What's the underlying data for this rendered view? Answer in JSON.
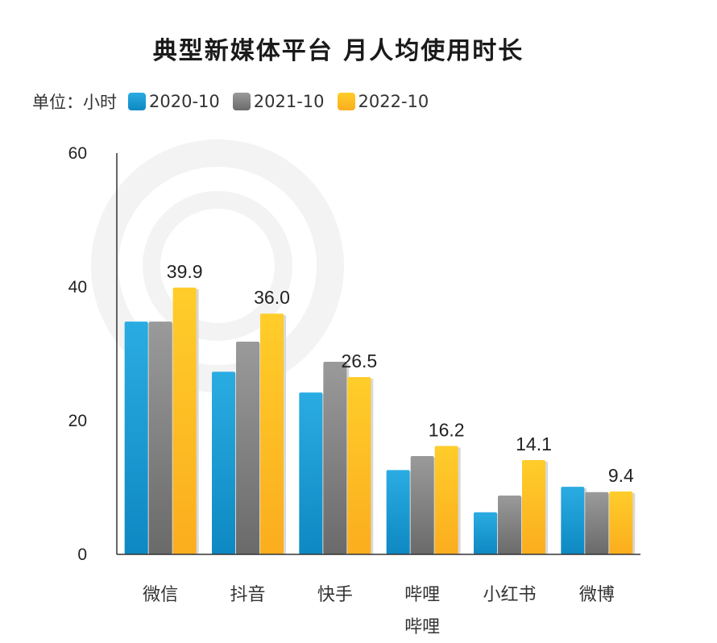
{
  "colors": {
    "series_top": [
      "#2aace2",
      "#9a9a9a",
      "#ffcd2a"
    ],
    "series_bottom": [
      "#0e88c2",
      "#6a6a6a",
      "#fbad1e"
    ]
  },
  "legend": {
    "unit_label": "单位：小时"
  },
  "chart_data": {
    "type": "bar",
    "title": "典型新媒体平台 月人均使用时长",
    "xlabel": "",
    "ylabel": "",
    "ylim": [
      0,
      60
    ],
    "yticks": [
      0,
      20,
      40,
      60
    ],
    "grid": false,
    "legend_position": "top-left",
    "categories": [
      "微信",
      "抖音",
      "快手",
      "哔哩哔哩",
      "小红书",
      "微博"
    ],
    "category_lines": [
      [
        "微信"
      ],
      [
        "抖音"
      ],
      [
        "快手"
      ],
      [
        "哔哩",
        "哔哩"
      ],
      [
        "小红书"
      ],
      [
        "微博"
      ]
    ],
    "series": [
      {
        "name": "2020-10",
        "values": [
          34.8,
          27.3,
          24.2,
          12.6,
          6.3,
          10.1
        ]
      },
      {
        "name": "2021-10",
        "values": [
          34.8,
          31.8,
          28.8,
          14.7,
          8.8,
          9.3
        ]
      },
      {
        "name": "2022-10",
        "values": [
          39.9,
          36.0,
          26.5,
          16.2,
          14.1,
          9.4
        ]
      }
    ],
    "data_labels": {
      "series_index": 2,
      "values": [
        "39.9",
        "36.0",
        "26.5",
        "16.2",
        "14.1",
        "9.4"
      ]
    }
  }
}
